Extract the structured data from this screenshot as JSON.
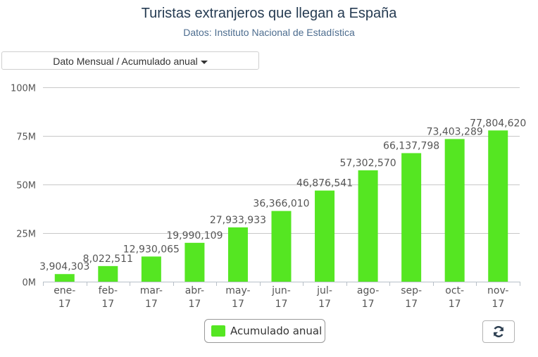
{
  "header": {
    "title": "Turistas extranjeros que llegan a España",
    "subtitle": "Datos: Instituto Nacional de Estadística"
  },
  "controls": {
    "view_selector_label": "Dato Mensual / Acumulado anual",
    "view_selector_icon": "caret-down-icon",
    "refresh_icon": "refresh-icon"
  },
  "colors": {
    "bar": "#55e622",
    "grid": "#c8c8c8",
    "axis_text": "#555555",
    "title": "#253b52"
  },
  "chart_data": {
    "type": "bar",
    "title": "Turistas extranjeros que llegan a España",
    "subtitle": "Datos: Instituto Nacional de Estadística",
    "xlabel": "",
    "ylabel": "",
    "categories": [
      [
        "ene-",
        "17"
      ],
      [
        "feb-",
        "17"
      ],
      [
        "mar-",
        "17"
      ],
      [
        "abr-",
        "17"
      ],
      [
        "may-",
        "17"
      ],
      [
        "jun-",
        "17"
      ],
      [
        "jul-",
        "17"
      ],
      [
        "ago-",
        "17"
      ],
      [
        "sep-",
        "17"
      ],
      [
        "oct-",
        "17"
      ],
      [
        "nov-",
        "17"
      ]
    ],
    "series": [
      {
        "name": "Acumulado anual",
        "color": "#55e622",
        "values": [
          3904303,
          8022511,
          12930065,
          19990109,
          27933933,
          36366010,
          46876541,
          57302570,
          66137798,
          73403289,
          77804620
        ],
        "labels": [
          "3,904,303",
          "8,022,511",
          "12,930,065",
          "19,990,109",
          "27,933,933",
          "36,366,010",
          "46,876,541",
          "57,302,570",
          "66,137,798",
          "73,403,289",
          "77,804,620"
        ]
      }
    ],
    "ylim": [
      0,
      100000000
    ],
    "yticks": [
      0,
      25000000,
      50000000,
      75000000,
      100000000
    ],
    "ytick_labels": [
      "0M",
      "25M",
      "50M",
      "75M",
      "100M"
    ],
    "grid": true,
    "legend": "bottom-center"
  }
}
